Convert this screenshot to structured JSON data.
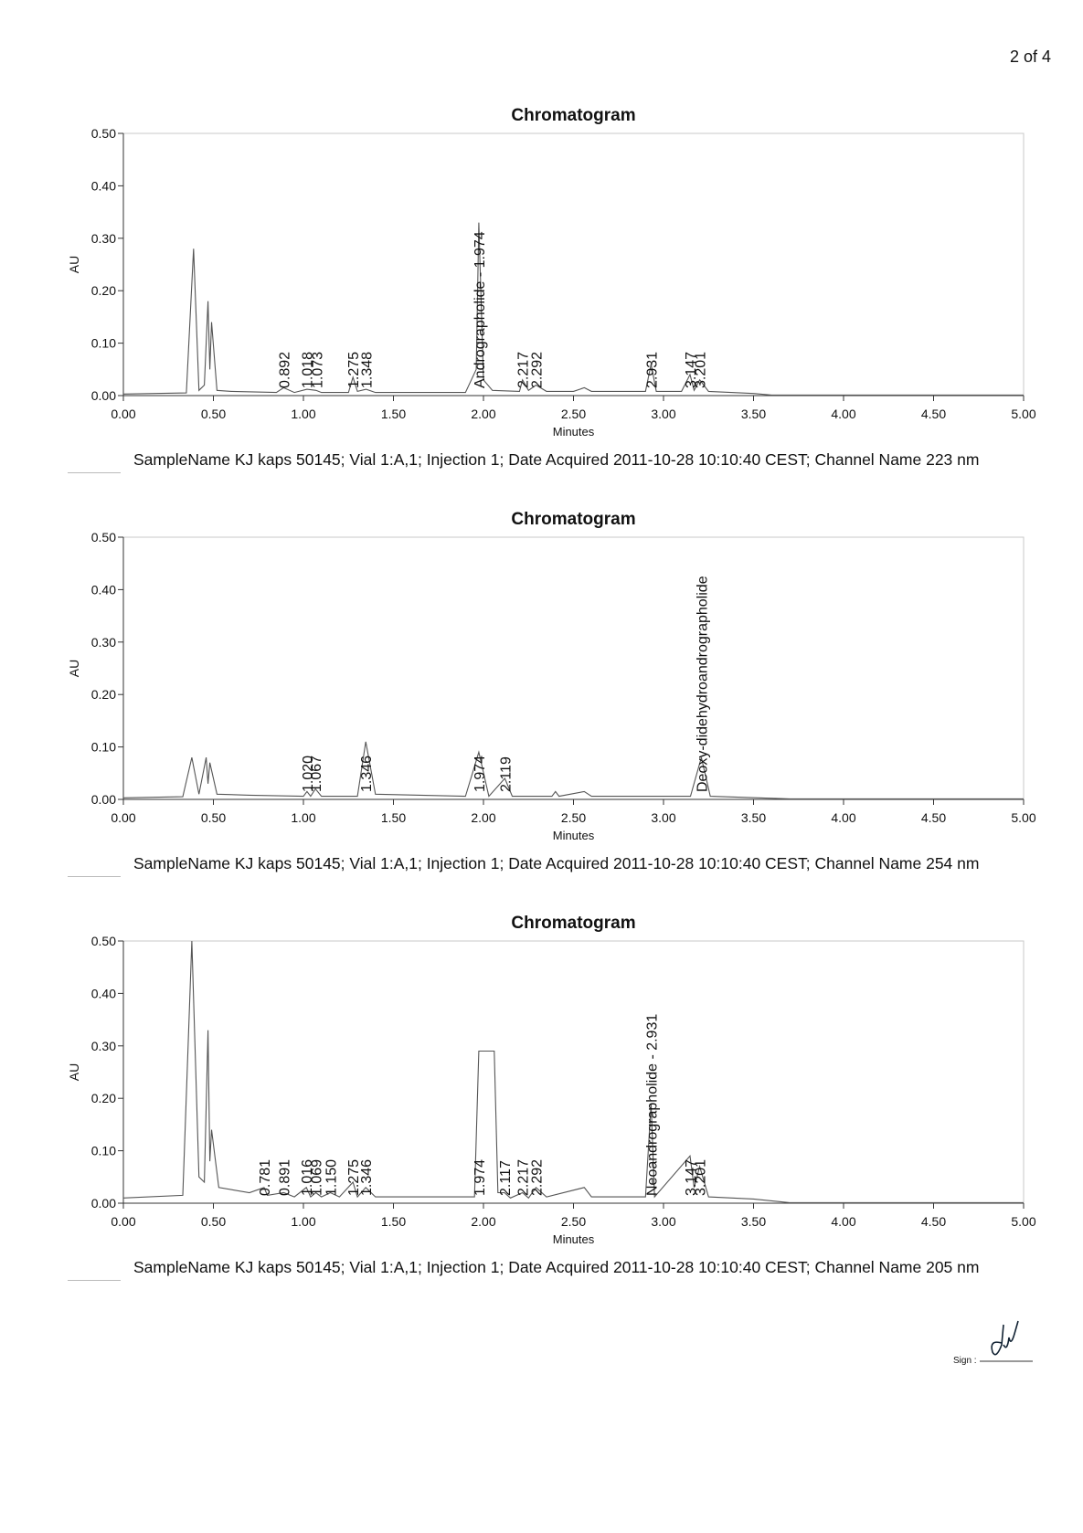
{
  "page_number": "2 of 4",
  "sign_label": "Sign :",
  "chart_data": [
    {
      "type": "line",
      "title": "Chromatogram",
      "x_label": "Minutes",
      "y_label": "AU",
      "color": "#555555",
      "caption": "SampleName KJ kaps 50145; Vial 1:A,1; Injection 1; Date Acquired 2011-10-28 10:10:40 CEST; Channel Name 223 nm",
      "xlim": [
        0,
        5
      ],
      "ylim": [
        0,
        0.5
      ],
      "xticks": [
        {
          "value": 0,
          "label": "0.00"
        },
        {
          "value": 0.5,
          "label": "0.50"
        },
        {
          "value": 1,
          "label": "1.00"
        },
        {
          "value": 1.5,
          "label": "1.50"
        },
        {
          "value": 2,
          "label": "2.00"
        },
        {
          "value": 2.5,
          "label": "2.50"
        },
        {
          "value": 3,
          "label": "3.00"
        },
        {
          "value": 3.5,
          "label": "3.50"
        },
        {
          "value": 4,
          "label": "4.00"
        },
        {
          "value": 4.5,
          "label": "4.50"
        },
        {
          "value": 5,
          "label": "5.00"
        }
      ],
      "yticks": [
        {
          "value": 0,
          "label": "0.00"
        },
        {
          "value": 0.1,
          "label": "0.10"
        },
        {
          "value": 0.2,
          "label": "0.20"
        },
        {
          "value": 0.3,
          "label": "0.30"
        },
        {
          "value": 0.4,
          "label": "0.40"
        },
        {
          "value": 0.5,
          "label": "0.50"
        }
      ],
      "x": [
        0,
        0.35,
        0.39,
        0.42,
        0.45,
        0.47,
        0.48,
        0.49,
        0.52,
        0.6,
        0.85,
        0.89,
        0.95,
        1.02,
        1.07,
        1.1,
        1.25,
        1.275,
        1.3,
        1.348,
        1.4,
        1.9,
        1.96,
        1.974,
        2.0,
        2.05,
        2.2,
        2.217,
        2.25,
        2.292,
        2.35,
        2.5,
        2.56,
        2.6,
        2.9,
        2.931,
        2.96,
        3.1,
        3.147,
        3.17,
        3.201,
        3.25,
        3.5,
        3.6,
        5
      ],
      "values": [
        0.003,
        0.005,
        0.28,
        0.01,
        0.02,
        0.18,
        0.05,
        0.14,
        0.01,
        0.008,
        0.006,
        0.015,
        0.006,
        0.012,
        0.01,
        0.006,
        0.006,
        0.035,
        0.008,
        0.012,
        0.006,
        0.006,
        0.05,
        0.33,
        0.03,
        0.01,
        0.008,
        0.03,
        0.01,
        0.02,
        0.008,
        0.008,
        0.015,
        0.008,
        0.008,
        0.06,
        0.008,
        0.008,
        0.04,
        0.01,
        0.03,
        0.008,
        0.004,
        0.001,
        0.001
      ],
      "peaks": [
        {
          "value": 0.892,
          "label": "0.892"
        },
        {
          "value": 1.018,
          "label": "1.018"
        },
        {
          "value": 1.073,
          "label": "1.073"
        },
        {
          "value": 1.275,
          "label": "1.275"
        },
        {
          "value": 1.348,
          "label": "1.348"
        },
        {
          "value": 1.974,
          "label": "Andrographolide - 1.974"
        },
        {
          "value": 2.217,
          "label": "2.217"
        },
        {
          "value": 2.292,
          "label": "2.292"
        },
        {
          "value": 2.931,
          "label": "2.931"
        },
        {
          "value": 3.147,
          "label": "3.147"
        },
        {
          "value": 3.201,
          "label": "3.201"
        }
      ]
    },
    {
      "type": "line",
      "title": "Chromatogram",
      "x_label": "Minutes",
      "y_label": "AU",
      "color": "#555555",
      "caption": "SampleName KJ kaps 50145; Vial 1:A,1; Injection 1; Date Acquired 2011-10-28 10:10:40 CEST; Channel Name 254 nm",
      "xlim": [
        0,
        5
      ],
      "ylim": [
        0,
        0.5
      ],
      "xticks": [
        {
          "value": 0,
          "label": "0.00"
        },
        {
          "value": 0.5,
          "label": "0.50"
        },
        {
          "value": 1,
          "label": "1.00"
        },
        {
          "value": 1.5,
          "label": "1.50"
        },
        {
          "value": 2,
          "label": "2.00"
        },
        {
          "value": 2.5,
          "label": "2.50"
        },
        {
          "value": 3,
          "label": "3.00"
        },
        {
          "value": 3.5,
          "label": "3.50"
        },
        {
          "value": 4,
          "label": "4.00"
        },
        {
          "value": 4.5,
          "label": "4.50"
        },
        {
          "value": 5,
          "label": "5.00"
        }
      ],
      "yticks": [
        {
          "value": 0,
          "label": "0.00"
        },
        {
          "value": 0.1,
          "label": "0.10"
        },
        {
          "value": 0.2,
          "label": "0.20"
        },
        {
          "value": 0.3,
          "label": "0.30"
        },
        {
          "value": 0.4,
          "label": "0.40"
        },
        {
          "value": 0.5,
          "label": "0.50"
        }
      ],
      "x": [
        0,
        0.33,
        0.38,
        0.42,
        0.46,
        0.47,
        0.48,
        0.52,
        0.7,
        1.0,
        1.02,
        1.04,
        1.067,
        1.1,
        1.3,
        1.346,
        1.4,
        1.9,
        1.974,
        2.03,
        2.119,
        2.16,
        2.38,
        2.4,
        2.42,
        2.56,
        2.6,
        3.15,
        3.21,
        3.26,
        3.7,
        5
      ],
      "values": [
        0.003,
        0.005,
        0.08,
        0.01,
        0.08,
        0.03,
        0.07,
        0.01,
        0.008,
        0.006,
        0.015,
        0.006,
        0.02,
        0.006,
        0.006,
        0.11,
        0.01,
        0.006,
        0.09,
        0.006,
        0.04,
        0.006,
        0.006,
        0.015,
        0.006,
        0.015,
        0.006,
        0.006,
        0.08,
        0.006,
        0.001,
        0.001
      ],
      "peaks": [
        {
          "value": 1.02,
          "label": "1.020"
        },
        {
          "value": 1.067,
          "label": "1.067"
        },
        {
          "value": 1.346,
          "label": "1.346"
        },
        {
          "value": 1.974,
          "label": "1.974"
        },
        {
          "value": 2.119,
          "label": "2.119"
        },
        {
          "value": 3.21,
          "label": "Deoxy-didehydroandrographolide"
        }
      ]
    },
    {
      "type": "line",
      "title": "Chromatogram",
      "x_label": "Minutes",
      "y_label": "AU",
      "color": "#555555",
      "caption": "SampleName KJ kaps 50145; Vial 1:A,1; Injection 1; Date Acquired 2011-10-28 10:10:40 CEST; Channel Name 205 nm",
      "xlim": [
        0,
        5
      ],
      "ylim": [
        0,
        0.5
      ],
      "xticks": [
        {
          "value": 0,
          "label": "0.00"
        },
        {
          "value": 0.5,
          "label": "0.50"
        },
        {
          "value": 1,
          "label": "1.00"
        },
        {
          "value": 1.5,
          "label": "1.50"
        },
        {
          "value": 2,
          "label": "2.00"
        },
        {
          "value": 2.5,
          "label": "2.50"
        },
        {
          "value": 3,
          "label": "3.00"
        },
        {
          "value": 3.5,
          "label": "3.50"
        },
        {
          "value": 4,
          "label": "4.00"
        },
        {
          "value": 4.5,
          "label": "4.50"
        },
        {
          "value": 5,
          "label": "5.00"
        }
      ],
      "yticks": [
        {
          "value": 0,
          "label": "0.00"
        },
        {
          "value": 0.1,
          "label": "0.10"
        },
        {
          "value": 0.2,
          "label": "0.20"
        },
        {
          "value": 0.3,
          "label": "0.30"
        },
        {
          "value": 0.4,
          "label": "0.40"
        },
        {
          "value": 0.5,
          "label": "0.50"
        }
      ],
      "x": [
        0,
        0.33,
        0.38,
        0.42,
        0.45,
        0.47,
        0.48,
        0.49,
        0.53,
        0.7,
        0.781,
        0.8,
        0.891,
        0.95,
        1.016,
        1.04,
        1.069,
        1.1,
        1.15,
        1.2,
        1.275,
        1.3,
        1.346,
        1.4,
        1.95,
        1.974,
        2.06,
        2.08,
        2.117,
        2.15,
        2.217,
        2.25,
        2.292,
        2.35,
        2.56,
        2.6,
        2.9,
        2.931,
        2.95,
        3.147,
        3.17,
        3.201,
        3.25,
        3.5,
        3.7,
        5
      ],
      "values": [
        0.01,
        0.015,
        0.5,
        0.05,
        0.04,
        0.33,
        0.08,
        0.14,
        0.03,
        0.02,
        0.03,
        0.015,
        0.02,
        0.012,
        0.03,
        0.012,
        0.02,
        0.012,
        0.02,
        0.012,
        0.04,
        0.012,
        0.03,
        0.012,
        0.012,
        0.29,
        0.29,
        0.02,
        0.02,
        0.01,
        0.02,
        0.01,
        0.03,
        0.012,
        0.03,
        0.012,
        0.012,
        0.19,
        0.012,
        0.09,
        0.03,
        0.07,
        0.012,
        0.008,
        0.001,
        0.001
      ],
      "peaks": [
        {
          "value": 0.781,
          "label": "0.781"
        },
        {
          "value": 0.891,
          "label": "0.891"
        },
        {
          "value": 1.016,
          "label": "1.016"
        },
        {
          "value": 1.069,
          "label": "1.069"
        },
        {
          "value": 1.15,
          "label": "1.150"
        },
        {
          "value": 1.275,
          "label": "1.275"
        },
        {
          "value": 1.346,
          "label": "1.346"
        },
        {
          "value": 1.974,
          "label": "1.974"
        },
        {
          "value": 2.117,
          "label": "2.117"
        },
        {
          "value": 2.217,
          "label": "2.217"
        },
        {
          "value": 2.292,
          "label": "2.292"
        },
        {
          "value": 2.931,
          "label": "Neoandrographolide - 2.931"
        },
        {
          "value": 3.147,
          "label": "3.147"
        },
        {
          "value": 3.201,
          "label": "3.201"
        }
      ]
    }
  ]
}
